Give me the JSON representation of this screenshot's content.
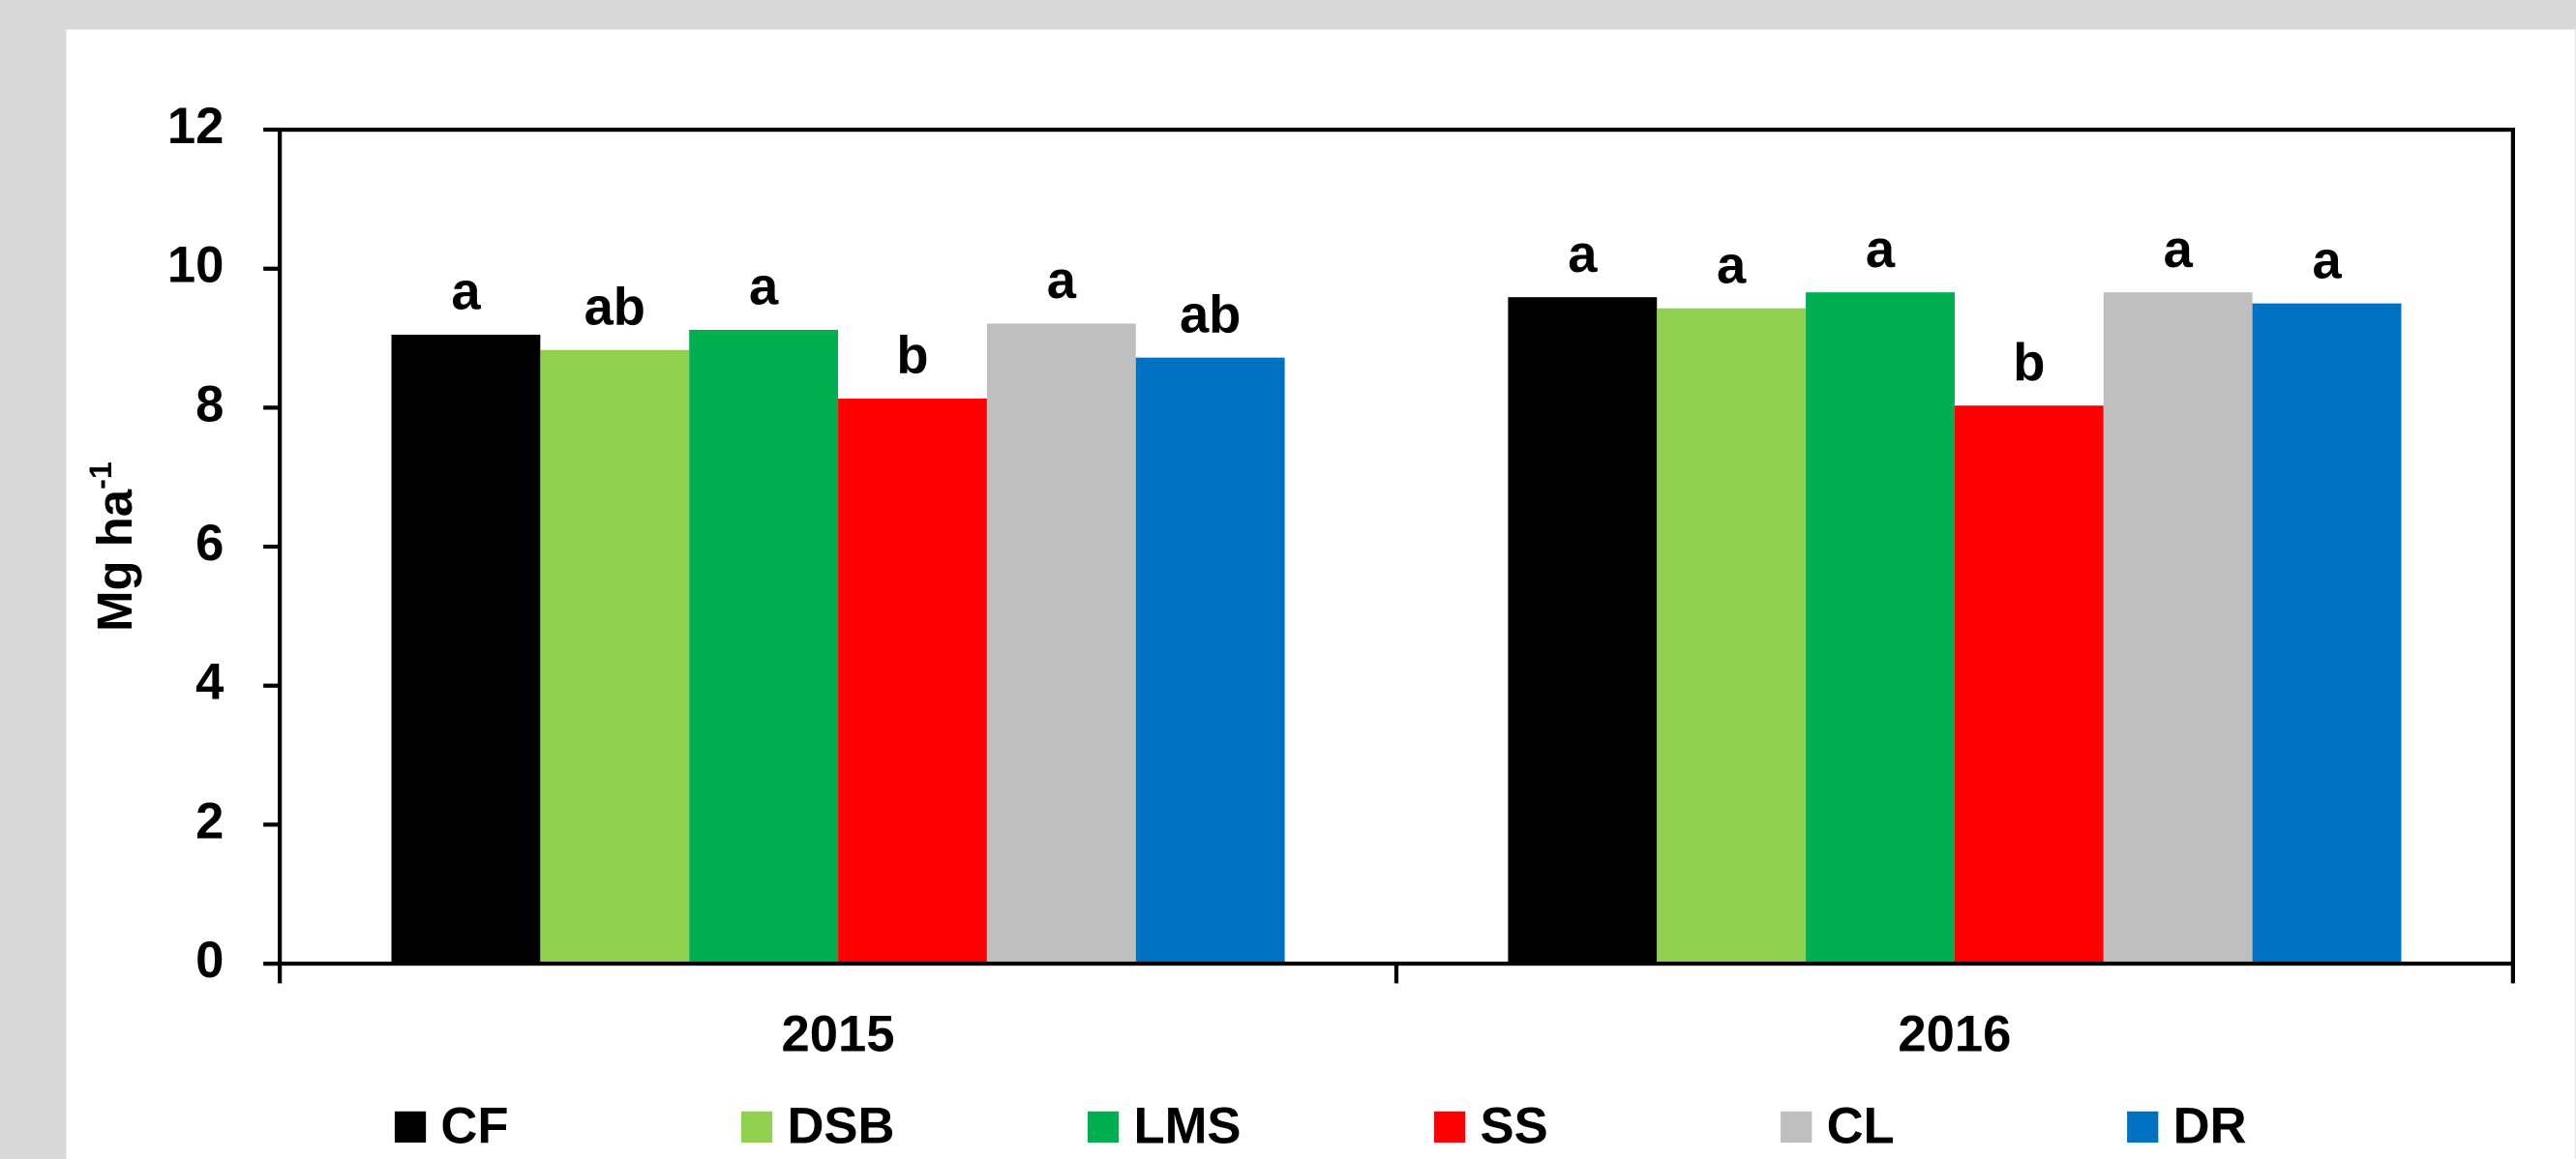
{
  "chart_data": {
    "type": "bar",
    "ylabel": {
      "text": "Mg ha",
      "superscript": "-1"
    },
    "categories": [
      "2015",
      "2016"
    ],
    "series": [
      {
        "name": "CF",
        "color": "#000000",
        "values": [
          9.05,
          9.59
        ],
        "letters": [
          "a",
          "a"
        ]
      },
      {
        "name": "DSB",
        "color": "#92d050",
        "values": [
          8.83,
          9.43
        ],
        "letters": [
          "ab",
          "a"
        ]
      },
      {
        "name": "LMS",
        "color": "#00b050",
        "values": [
          9.12,
          9.66
        ],
        "letters": [
          "a",
          "a"
        ]
      },
      {
        "name": "SS",
        "color": "#ff0000",
        "values": [
          8.13,
          8.03
        ],
        "letters": [
          "b",
          "b"
        ]
      },
      {
        "name": "CL",
        "color": "#bfbfbf",
        "values": [
          9.21,
          9.66
        ],
        "letters": [
          "a",
          "a"
        ]
      },
      {
        "name": "DR",
        "color": "#0070c0",
        "values": [
          8.72,
          9.5
        ],
        "letters": [
          "ab",
          "a"
        ]
      }
    ],
    "ylim": [
      0,
      12
    ],
    "yticks": [
      0,
      2,
      4,
      6,
      8,
      10,
      12
    ],
    "grid": false,
    "legend": "bottom"
  }
}
